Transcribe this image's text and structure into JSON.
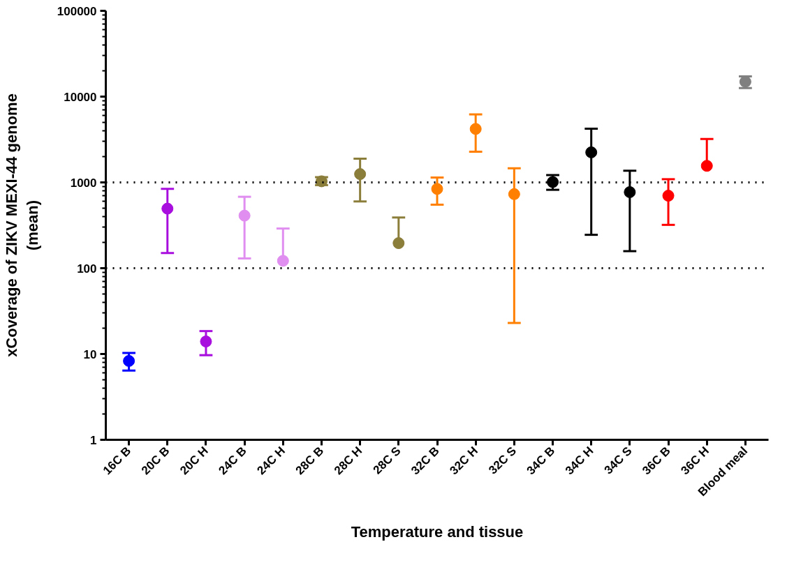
{
  "chart_data": {
    "type": "scatter",
    "xlabel": "Temperature and tissue",
    "ylabel": "xCoverage of ZIKV MEXI-44 genome\n(mean)",
    "categories": [
      "16C B",
      "20C B",
      "20C H",
      "24C B",
      "24C H",
      "28C B",
      "28C H",
      "28C S",
      "32C B",
      "32C H",
      "32C S",
      "34C B",
      "34C H",
      "34C S",
      "36C B",
      "36C H",
      "Blood meal"
    ],
    "values": [
      8.3,
      495,
      14,
      410,
      122,
      1030,
      1250,
      196,
      840,
      4200,
      730,
      1010,
      2240,
      770,
      700,
      1560,
      14900
    ],
    "errors": [
      [
        6.4,
        10.3
      ],
      [
        150,
        840
      ],
      [
        9.7,
        18.5
      ],
      [
        130,
        680
      ],
      [
        122,
        290
      ],
      [
        930,
        1150
      ],
      [
        600,
        1890
      ],
      [
        196,
        390
      ],
      [
        550,
        1140
      ],
      [
        2280,
        6200
      ],
      [
        23,
        1460
      ],
      [
        820,
        1220
      ],
      [
        245,
        4230
      ],
      [
        158,
        1370
      ],
      [
        320,
        1090
      ],
      [
        1560,
        3200
      ],
      [
        12600,
        17200
      ]
    ],
    "colors": [
      "#0000ff",
      "#a80fde",
      "#a80fde",
      "#e08ef0",
      "#e08ef0",
      "#8b7d3a",
      "#8b7d3a",
      "#8b7d3a",
      "#ff8000",
      "#ff8000",
      "#ff8000",
      "#000000",
      "#000000",
      "#000000",
      "#ff0000",
      "#ff0000",
      "#808080"
    ],
    "log": "y",
    "ylim": [
      1,
      100000
    ],
    "yticks": [
      1,
      10,
      100,
      1000,
      10000,
      100000
    ],
    "grid": false,
    "marker": "circle",
    "ref_lines": [
      {
        "axis": "y",
        "value": 100,
        "color": "#000000",
        "line_style": "dotted"
      },
      {
        "axis": "y",
        "value": 1000,
        "color": "#000000",
        "line_style": "dotted"
      }
    ]
  }
}
